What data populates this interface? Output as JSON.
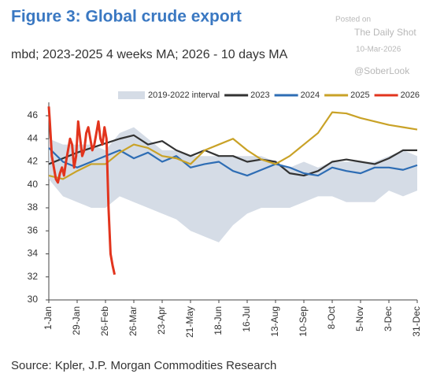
{
  "chart_data": {
    "type": "line",
    "title": "Figure 3: Global crude export",
    "subtitle": "mbd; 2023-2025 4 weeks MA; 2026 - 10 days MA",
    "source": "Source: Kpler, J.P. Morgan Commodities Research",
    "annotations": [
      "Posted on",
      "The Daily Shot",
      "10-Mar-2026",
      "@SoberLook"
    ],
    "xlim": [
      1,
      365
    ],
    "xticks": [
      {
        "value": 1,
        "label": "1-Jan"
      },
      {
        "value": 29,
        "label": "29-Jan"
      },
      {
        "value": 57,
        "label": "26-Feb"
      },
      {
        "value": 85,
        "label": "26-Mar"
      },
      {
        "value": 113,
        "label": "23-Apr"
      },
      {
        "value": 141,
        "label": "21-May"
      },
      {
        "value": 169,
        "label": "18-Jun"
      },
      {
        "value": 197,
        "label": "16-Jul"
      },
      {
        "value": 225,
        "label": "13-Aug"
      },
      {
        "value": 253,
        "label": "10-Sep"
      },
      {
        "value": 281,
        "label": "8-Oct"
      },
      {
        "value": 309,
        "label": "5-Nov"
      },
      {
        "value": 337,
        "label": "3-Dec"
      },
      {
        "value": 365,
        "label": "31-Dec"
      }
    ],
    "ylim": [
      30,
      47
    ],
    "yticks": [
      30,
      32,
      34,
      36,
      38,
      40,
      42,
      44,
      46
    ],
    "legend": "top",
    "x": [
      1,
      15,
      29,
      43,
      57,
      71,
      85,
      99,
      113,
      127,
      141,
      155,
      169,
      183,
      197,
      211,
      225,
      239,
      253,
      267,
      281,
      295,
      309,
      323,
      337,
      351,
      365
    ],
    "band": {
      "name": "2019-2022 interval",
      "color": "#d5dce6",
      "upper": [
        44,
        43.5,
        43.5,
        43.5,
        43,
        44.5,
        45,
        44,
        43,
        43,
        42.5,
        42.5,
        42.5,
        42.5,
        42.5,
        42.5,
        42,
        41.5,
        42,
        41.5,
        42,
        42,
        42,
        42,
        42.5,
        43,
        42.5
      ],
      "lower": [
        40.5,
        39,
        38.5,
        38,
        38,
        39,
        38.5,
        38,
        37.5,
        37,
        36,
        35.5,
        35,
        36.5,
        37.5,
        38,
        38,
        38,
        38.5,
        39,
        39,
        38.5,
        38.5,
        38.5,
        39.5,
        39,
        39.5
      ]
    },
    "series": [
      {
        "name": "2023",
        "color": "#333333",
        "values": [
          41.8,
          42.3,
          42.8,
          43.2,
          43.6,
          44,
          44.3,
          43.5,
          43.8,
          43,
          42.5,
          43,
          42.5,
          42.5,
          42,
          42.2,
          42,
          41,
          40.8,
          41.2,
          42,
          42.2,
          42,
          41.8,
          42.3,
          43,
          43
        ]
      },
      {
        "name": "2024",
        "color": "#2e6db4",
        "values": [
          43.2,
          42,
          41.5,
          42,
          42.5,
          43,
          42.3,
          42.8,
          42,
          42.5,
          41.5,
          41.8,
          42,
          41.2,
          40.8,
          41.3,
          41.8,
          41.5,
          41,
          40.8,
          41.5,
          41.2,
          41,
          41.5,
          41.5,
          41.3,
          41.7
        ]
      },
      {
        "name": "2025",
        "color": "#c9a227",
        "values": [
          40.8,
          40.5,
          41.2,
          41.8,
          41.8,
          42.8,
          43.5,
          43.2,
          42.5,
          42.3,
          41.8,
          43,
          43.5,
          44,
          43,
          42.2,
          41.8,
          42.5,
          43.5,
          44.5,
          46.3,
          46.2,
          45.8,
          45.5,
          45.2,
          45,
          44.8
        ]
      },
      {
        "name": "2026",
        "color": "#e2341d",
        "x": [
          1,
          2,
          3,
          4,
          6,
          8,
          10,
          12,
          14,
          16,
          18,
          20,
          22,
          24,
          26,
          28,
          30,
          32,
          34,
          36,
          38,
          40,
          42,
          44,
          46,
          48,
          50,
          52,
          54,
          56,
          58,
          60,
          62,
          64,
          66
        ],
        "values": [
          46.8,
          45.5,
          44,
          42.5,
          41.5,
          40.5,
          40.2,
          41,
          41.5,
          40.8,
          42,
          43,
          44,
          43.5,
          41.5,
          42.5,
          45.5,
          44,
          42.5,
          43,
          44.5,
          45,
          44,
          43,
          43.5,
          44.5,
          45.5,
          44,
          43.5,
          45,
          44,
          38,
          34,
          33,
          32.2
        ]
      }
    ]
  }
}
